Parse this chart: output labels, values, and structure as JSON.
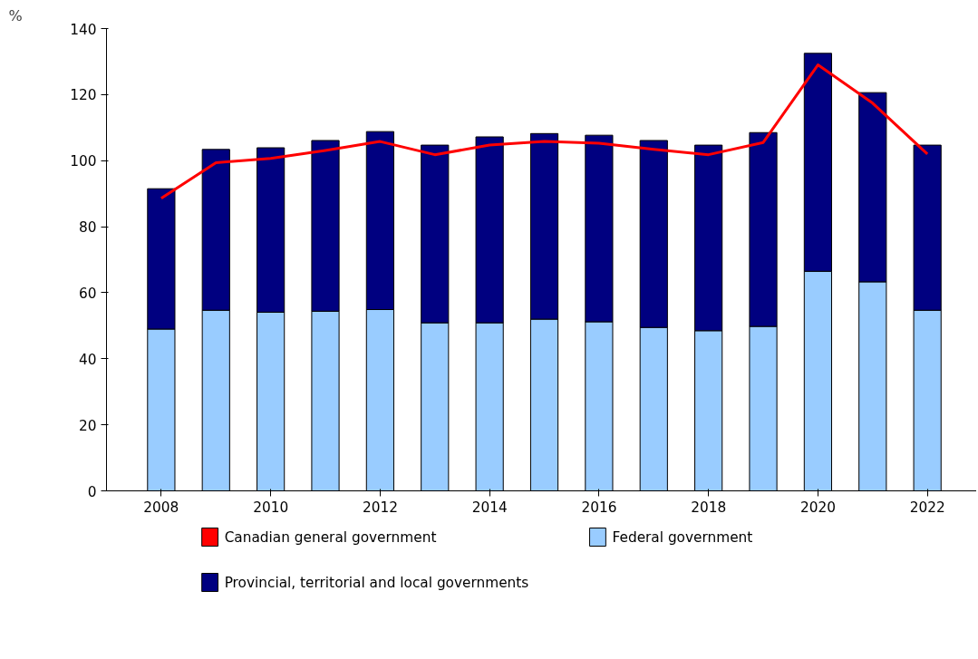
{
  "chart_data": {
    "type": "bar",
    "ylabel": "%",
    "stacked": true,
    "x": [
      2008,
      2009,
      2010,
      2011,
      2012,
      2013,
      2014,
      2015,
      2016,
      2017,
      2018,
      2019,
      2020,
      2021,
      2022
    ],
    "xlim": [
      2007,
      2022.9
    ],
    "xticks": [
      2008,
      2010,
      2012,
      2014,
      2016,
      2018,
      2020,
      2022
    ],
    "ylim": [
      0,
      140
    ],
    "yticks": [
      0,
      20,
      40,
      60,
      80,
      100,
      120,
      140
    ],
    "grid": false,
    "legend": "bottom",
    "series": [
      {
        "name": "Federal government",
        "color": "#99ccff",
        "values": [
          49.0,
          54.7,
          54.1,
          54.4,
          54.9,
          50.9,
          50.9,
          52.0,
          51.2,
          49.5,
          48.5,
          49.8,
          66.5,
          63.3,
          54.7
        ]
      },
      {
        "name": "Provincial, territorial and local governments",
        "color": "#000080",
        "values": [
          42.5,
          48.7,
          49.8,
          51.7,
          53.9,
          53.8,
          56.3,
          56.2,
          56.5,
          56.6,
          56.2,
          58.7,
          66.0,
          57.3,
          50.0
        ]
      },
      {
        "name": "Canadian general government",
        "type": "line",
        "color": "#ff0000",
        "values": [
          88.6,
          99.4,
          100.7,
          103.1,
          105.8,
          101.8,
          104.7,
          105.8,
          105.3,
          103.4,
          101.8,
          105.5,
          129.0,
          117.4,
          102.0
        ]
      }
    ]
  }
}
